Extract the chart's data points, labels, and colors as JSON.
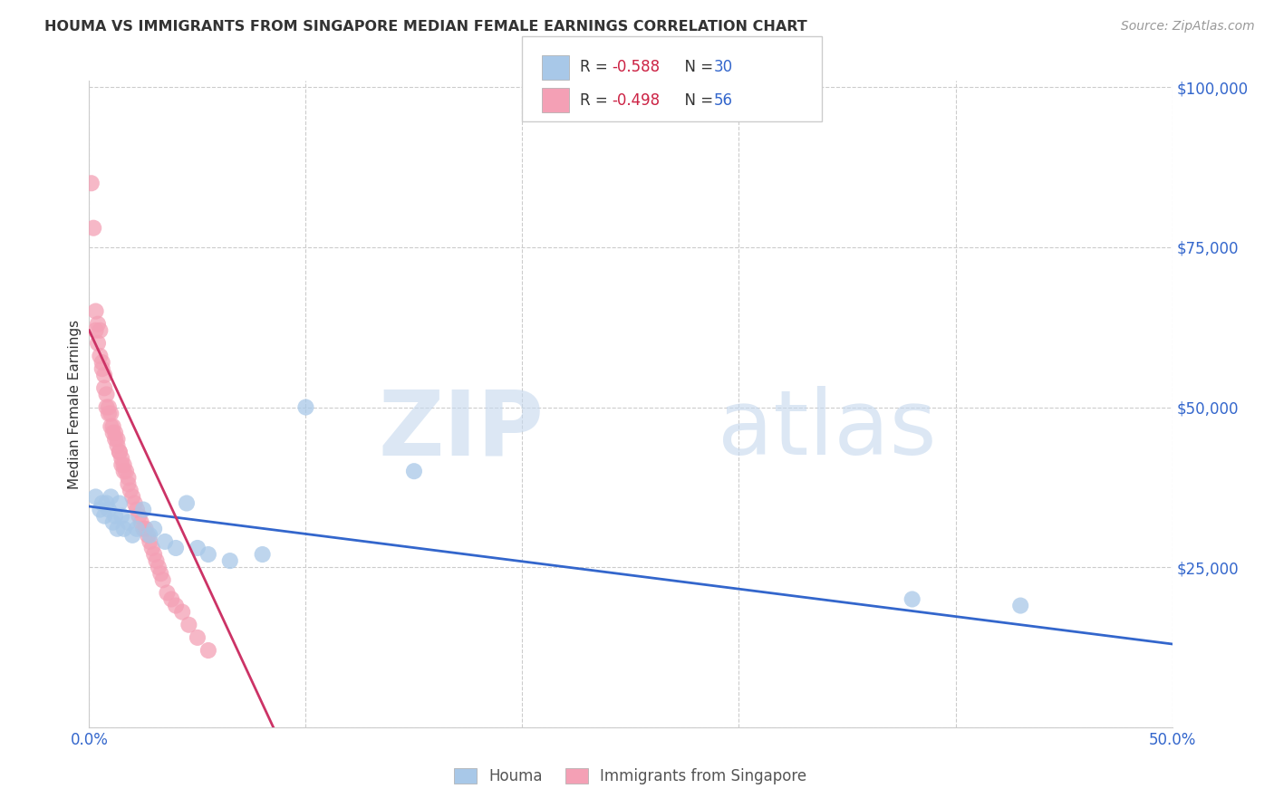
{
  "title": "HOUMA VS IMMIGRANTS FROM SINGAPORE MEDIAN FEMALE EARNINGS CORRELATION CHART",
  "source": "Source: ZipAtlas.com",
  "ylabel": "Median Female Earnings",
  "watermark_zip": "ZIP",
  "watermark_atlas": "atlas",
  "legend_r1": "-0.588",
  "legend_n1": "30",
  "legend_r2": "-0.498",
  "legend_n2": "56",
  "legend_label1": "Houma",
  "legend_label2": "Immigrants from Singapore",
  "xmin": 0.0,
  "xmax": 0.5,
  "ymin": 0,
  "ymax": 100000,
  "yticks": [
    0,
    25000,
    50000,
    75000,
    100000
  ],
  "ytick_labels": [
    "",
    "$25,000",
    "$50,000",
    "$75,000",
    "$100,000"
  ],
  "xticks": [
    0.0,
    0.1,
    0.2,
    0.3,
    0.4,
    0.5
  ],
  "xtick_labels": [
    "0.0%",
    "",
    "",
    "",
    "",
    "50.0%"
  ],
  "blue_color": "#a8c8e8",
  "pink_color": "#f4a0b5",
  "blue_line_color": "#3366cc",
  "pink_line_color": "#cc3366",
  "houma_x": [
    0.003,
    0.005,
    0.006,
    0.007,
    0.008,
    0.009,
    0.01,
    0.011,
    0.012,
    0.013,
    0.014,
    0.015,
    0.016,
    0.018,
    0.02,
    0.022,
    0.025,
    0.028,
    0.03,
    0.035,
    0.04,
    0.045,
    0.05,
    0.055,
    0.065,
    0.08,
    0.1,
    0.15,
    0.38,
    0.43
  ],
  "houma_y": [
    36000,
    34000,
    35000,
    33000,
    35000,
    34000,
    36000,
    32000,
    33000,
    31000,
    35000,
    33000,
    31000,
    32000,
    30000,
    31000,
    34000,
    30000,
    31000,
    29000,
    28000,
    35000,
    28000,
    27000,
    26000,
    27000,
    50000,
    40000,
    20000,
    19000
  ],
  "singapore_x": [
    0.001,
    0.002,
    0.003,
    0.003,
    0.004,
    0.004,
    0.005,
    0.005,
    0.006,
    0.006,
    0.007,
    0.007,
    0.008,
    0.008,
    0.009,
    0.009,
    0.01,
    0.01,
    0.011,
    0.011,
    0.012,
    0.012,
    0.013,
    0.013,
    0.014,
    0.014,
    0.015,
    0.015,
    0.016,
    0.016,
    0.017,
    0.018,
    0.018,
    0.019,
    0.02,
    0.021,
    0.022,
    0.023,
    0.024,
    0.025,
    0.026,
    0.027,
    0.028,
    0.029,
    0.03,
    0.031,
    0.032,
    0.033,
    0.034,
    0.036,
    0.038,
    0.04,
    0.043,
    0.046,
    0.05,
    0.055
  ],
  "singapore_y": [
    85000,
    78000,
    65000,
    62000,
    63000,
    60000,
    62000,
    58000,
    57000,
    56000,
    55000,
    53000,
    52000,
    50000,
    50000,
    49000,
    49000,
    47000,
    47000,
    46000,
    46000,
    45000,
    45000,
    44000,
    43000,
    43000,
    42000,
    41000,
    41000,
    40000,
    40000,
    39000,
    38000,
    37000,
    36000,
    35000,
    34000,
    33000,
    32000,
    31000,
    31000,
    30000,
    29000,
    28000,
    27000,
    26000,
    25000,
    24000,
    23000,
    21000,
    20000,
    19000,
    18000,
    16000,
    14000,
    12000
  ],
  "blue_trend_x0": 0.0,
  "blue_trend_x1": 0.5,
  "blue_trend_y0": 34500,
  "blue_trend_y1": 13000,
  "pink_trend_x0": 0.0,
  "pink_trend_x1": 0.085,
  "pink_trend_y0": 62000,
  "pink_trend_y1": 0
}
